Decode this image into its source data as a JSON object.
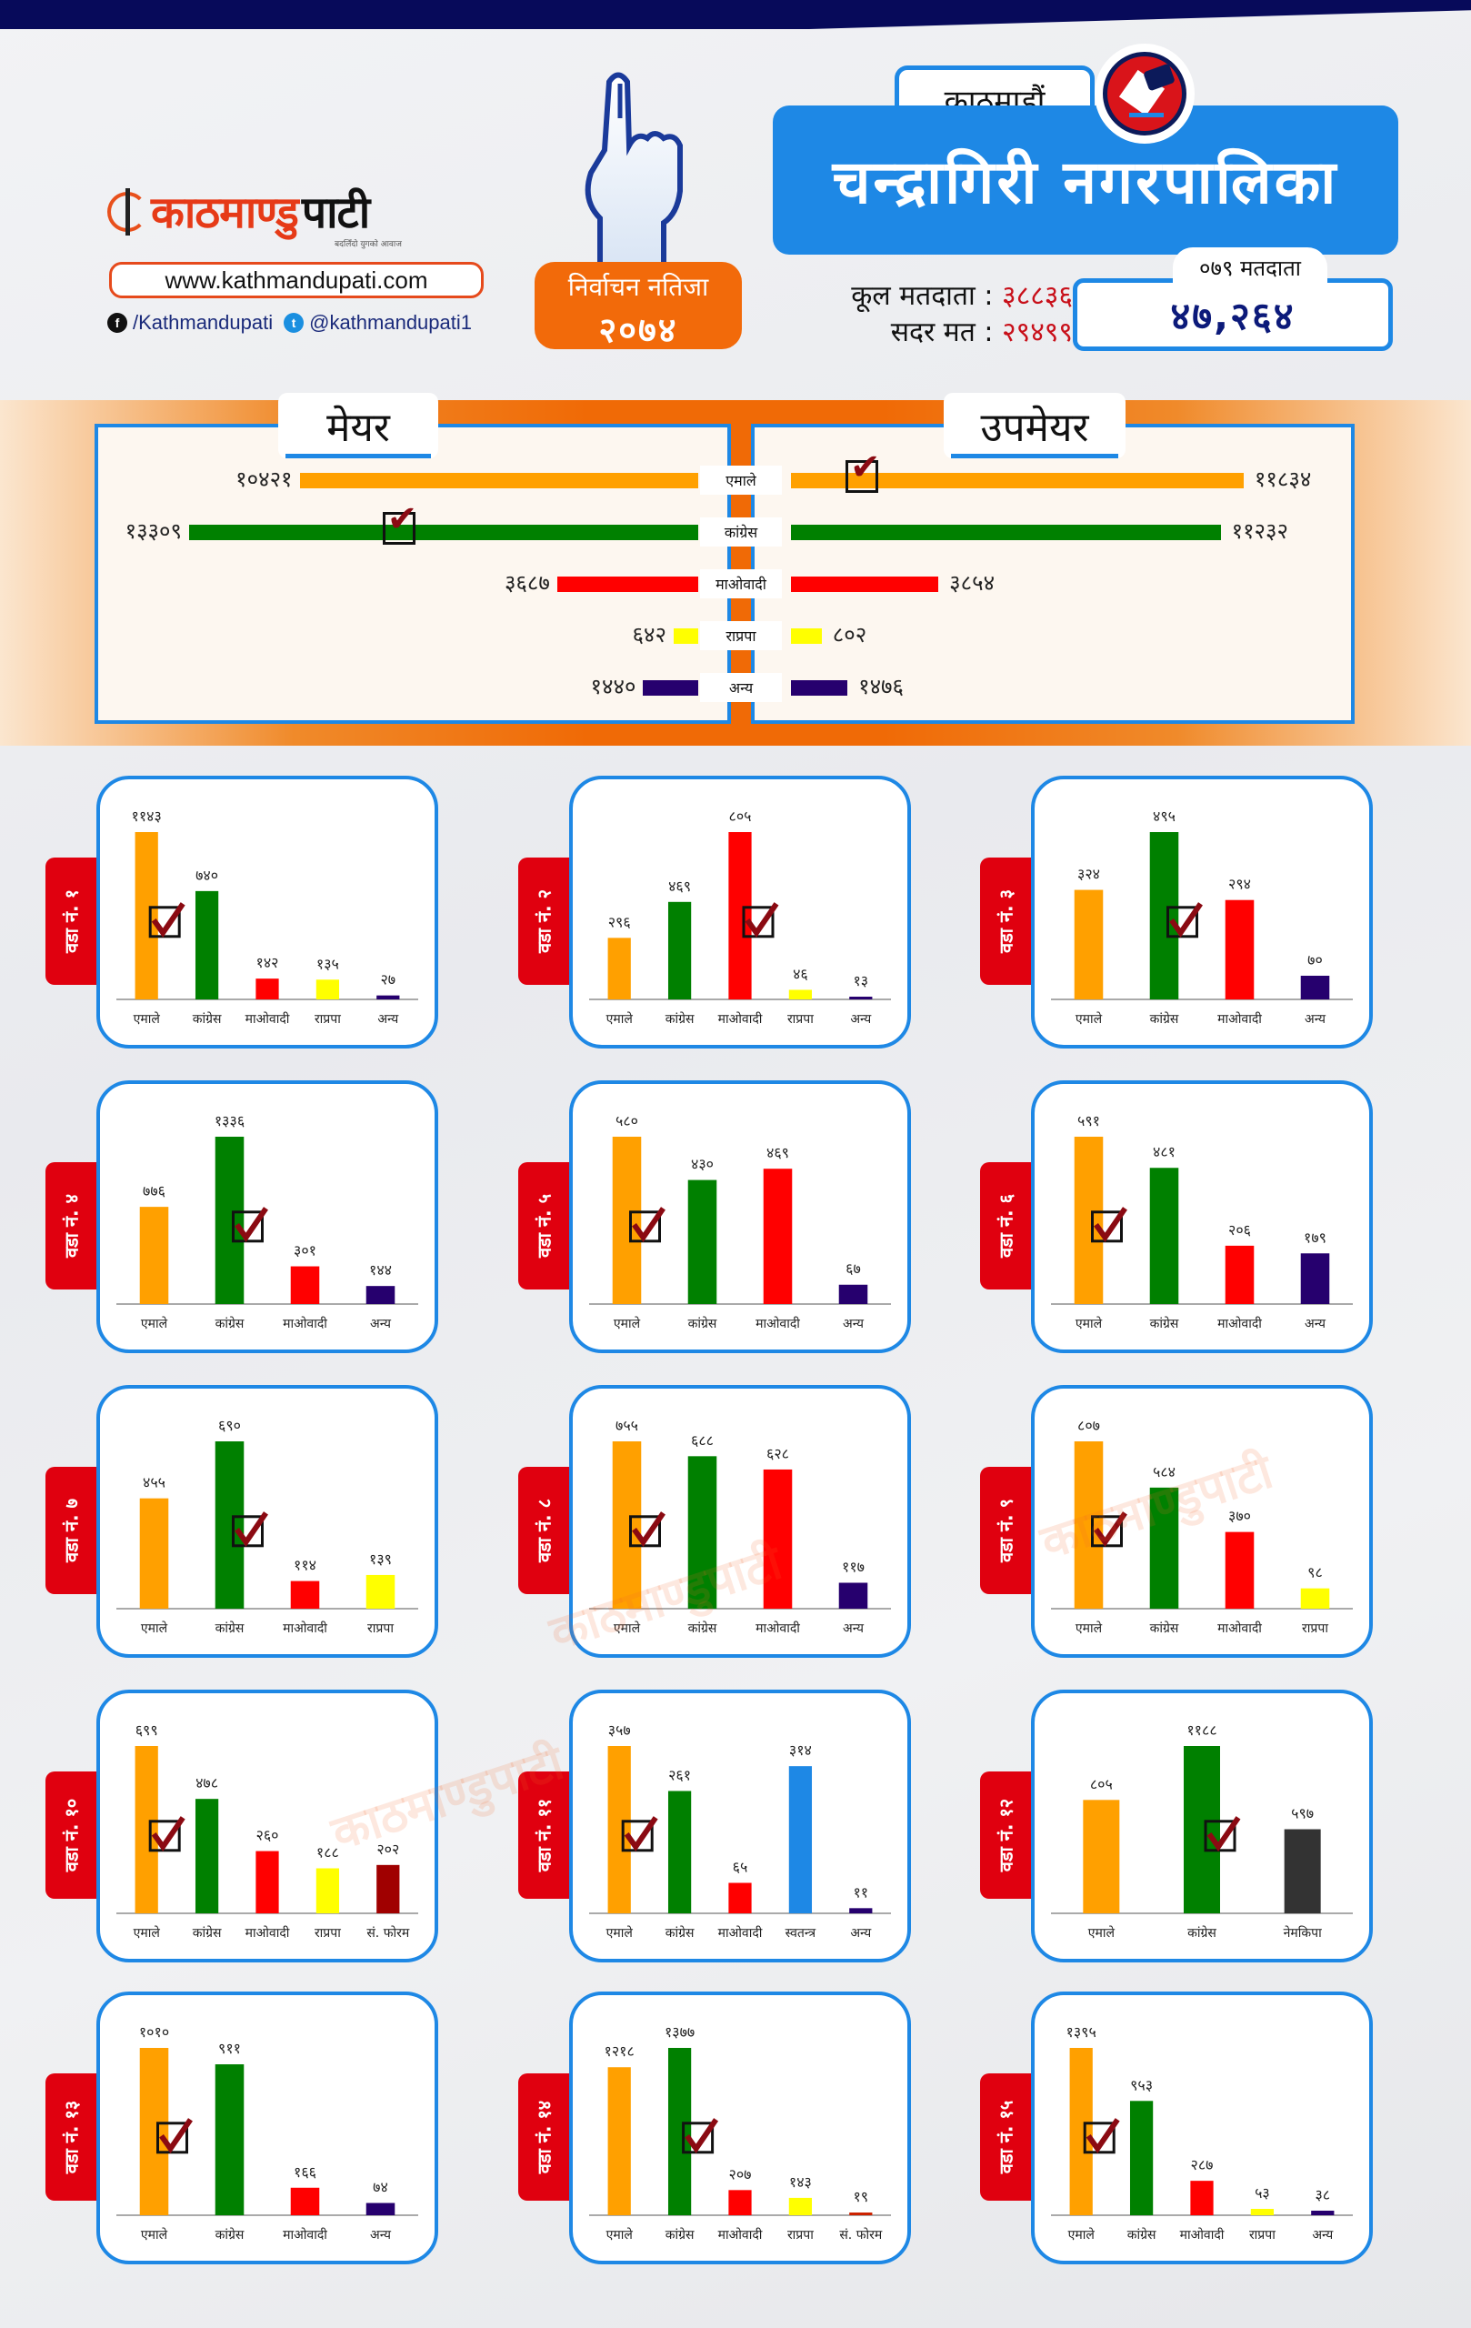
{
  "brand": {
    "logo_part1": "काठमाण्डु",
    "logo_part2": "पाटी",
    "tagline": "बदलिँदो युगको आवाज",
    "website": "www.kathmandupati.com",
    "facebook": "/Kathmandupati",
    "twitter": "@kathmandupati1",
    "colors": {
      "primary": "#e63a17",
      "navy": "#070a5a",
      "blue": "#1e88e5",
      "orange": "#f26a0a"
    }
  },
  "badge": {
    "line1": "निर्वाचन नतिजा",
    "line2": "२०७४"
  },
  "header": {
    "district": "काठमाडौं",
    "municipality": "चन्द्रागिरी नगरपालिका",
    "total_voters_label": "कूल मतदाता",
    "total_voters_value": "३८८३६",
    "valid_votes_label": "सदर मत",
    "valid_votes_value": "२९४९९",
    "voters_079_label": "०७९ मतदाता",
    "voters_079_value": "४७,२६४"
  },
  "chart_data": [
    {
      "type": "bar",
      "orientation": "horizontal",
      "title": "मेयर",
      "categories": [
        "एमाले",
        "कांग्रेस",
        "माओवादी",
        "राप्रपा",
        "अन्य"
      ],
      "values": [
        10421,
        13309,
        3687,
        642,
        1440
      ],
      "value_labels": [
        "१०४२१",
        "१३३०९",
        "३६८७",
        "६४२",
        "१४४०"
      ],
      "colors": [
        "#ffa000",
        "#008000",
        "#ff0000",
        "#ffff00",
        "#26006e"
      ],
      "winner": "कांग्रेस"
    },
    {
      "type": "bar",
      "orientation": "horizontal",
      "title": "उपमेयर",
      "categories": [
        "एमाले",
        "कांग्रेस",
        "माओवादी",
        "राप्रपा",
        "अन्य"
      ],
      "values": [
        11834,
        11232,
        3854,
        802,
        1476
      ],
      "value_labels": [
        "११८३४",
        "११२३२",
        "३८५४",
        "८०२",
        "१४७६"
      ],
      "colors": [
        "#ffa000",
        "#008000",
        "#ff0000",
        "#ffff00",
        "#26006e"
      ],
      "winner": "एमाले"
    },
    {
      "type": "bar",
      "title": "वडा नं. १",
      "categories": [
        "एमाले",
        "कांग्रेस",
        "माओवादी",
        "राप्रपा",
        "अन्य"
      ],
      "values": [
        1143,
        740,
        142,
        135,
        27
      ],
      "value_labels": [
        "११४३",
        "७४०",
        "१४२",
        "१३५",
        "२७"
      ],
      "colors": [
        "#ffa000",
        "#008000",
        "#ff0000",
        "#ffff00",
        "#26006e"
      ],
      "winner": "एमाले"
    },
    {
      "type": "bar",
      "title": "वडा नं. २",
      "categories": [
        "एमाले",
        "कांग्रेस",
        "माओवादी",
        "राप्रपा",
        "अन्य"
      ],
      "values": [
        296,
        469,
        805,
        46,
        13
      ],
      "value_labels": [
        "२९६",
        "४६९",
        "८०५",
        "४६",
        "१३"
      ],
      "colors": [
        "#ffa000",
        "#008000",
        "#ff0000",
        "#ffff00",
        "#26006e"
      ],
      "winner": "माओवादी"
    },
    {
      "type": "bar",
      "title": "वडा नं. ३",
      "categories": [
        "एमाले",
        "कांग्रेस",
        "माओवादी",
        "अन्य"
      ],
      "values": [
        324,
        495,
        294,
        70
      ],
      "value_labels": [
        "३२४",
        "४९५",
        "२९४",
        "७०"
      ],
      "colors": [
        "#ffa000",
        "#008000",
        "#ff0000",
        "#26006e"
      ],
      "winner": "कांग्रेस"
    },
    {
      "type": "bar",
      "title": "वडा नं. ४",
      "categories": [
        "एमाले",
        "कांग्रेस",
        "माओवादी",
        "अन्य"
      ],
      "values": [
        776,
        1336,
        301,
        144
      ],
      "value_labels": [
        "७७६",
        "१३३६",
        "३०१",
        "१४४"
      ],
      "colors": [
        "#ffa000",
        "#008000",
        "#ff0000",
        "#26006e"
      ],
      "winner": "कांग्रेस"
    },
    {
      "type": "bar",
      "title": "वडा नं. ५",
      "categories": [
        "एमाले",
        "कांग्रेस",
        "माओवादी",
        "अन्य"
      ],
      "values": [
        580,
        430,
        469,
        67
      ],
      "value_labels": [
        "५८०",
        "४३०",
        "४६९",
        "६७"
      ],
      "colors": [
        "#ffa000",
        "#008000",
        "#ff0000",
        "#26006e"
      ],
      "winner": "एमाले"
    },
    {
      "type": "bar",
      "title": "वडा नं. ६",
      "categories": [
        "एमाले",
        "कांग्रेस",
        "माओवादी",
        "अन्य"
      ],
      "values": [
        591,
        481,
        206,
        179
      ],
      "value_labels": [
        "५९१",
        "४८१",
        "२०६",
        "१७९"
      ],
      "colors": [
        "#ffa000",
        "#008000",
        "#ff0000",
        "#26006e"
      ],
      "winner": "एमाले"
    },
    {
      "type": "bar",
      "title": "वडा नं. ७",
      "categories": [
        "एमाले",
        "कांग्रेस",
        "माओवादी",
        "राप्रपा"
      ],
      "values": [
        455,
        690,
        114,
        139
      ],
      "value_labels": [
        "४५५",
        "६९०",
        "११४",
        "१३९"
      ],
      "colors": [
        "#ffa000",
        "#008000",
        "#ff0000",
        "#ffff00"
      ],
      "winner": "कांग्रेस"
    },
    {
      "type": "bar",
      "title": "वडा नं. ८",
      "categories": [
        "एमाले",
        "कांग्रेस",
        "माओवादी",
        "अन्य"
      ],
      "values": [
        755,
        688,
        628,
        117
      ],
      "value_labels": [
        "७५५",
        "६८८",
        "६२८",
        "११७"
      ],
      "colors": [
        "#ffa000",
        "#008000",
        "#ff0000",
        "#26006e"
      ],
      "winner": "एमाले"
    },
    {
      "type": "bar",
      "title": "वडा नं. ९",
      "categories": [
        "एमाले",
        "कांग्रेस",
        "माओवादी",
        "राप्रपा"
      ],
      "values": [
        807,
        584,
        370,
        98
      ],
      "value_labels": [
        "८०७",
        "५८४",
        "३७०",
        "९८"
      ],
      "colors": [
        "#ffa000",
        "#008000",
        "#ff0000",
        "#ffff00"
      ],
      "winner": "एमाले"
    },
    {
      "type": "bar",
      "title": "वडा नं. १०",
      "categories": [
        "एमाले",
        "कांग्रेस",
        "माओवादी",
        "राप्रपा",
        "सं. फोरम"
      ],
      "values": [
        699,
        478,
        260,
        188,
        202
      ],
      "value_labels": [
        "६९९",
        "४७८",
        "२६०",
        "१८८",
        "२०२"
      ],
      "colors": [
        "#ffa000",
        "#008000",
        "#ff0000",
        "#ffff00",
        "#a00000"
      ],
      "winner": "एमाले"
    },
    {
      "type": "bar",
      "title": "वडा नं. ११",
      "categories": [
        "एमाले",
        "कांग्रेस",
        "माओवादी",
        "स्वतन्त्र",
        "अन्य"
      ],
      "values": [
        357,
        261,
        65,
        314,
        11
      ],
      "value_labels": [
        "३५७",
        "२६१",
        "६५",
        "३१४",
        "११"
      ],
      "colors": [
        "#ffa000",
        "#008000",
        "#ff0000",
        "#1e88e5",
        "#26006e"
      ],
      "winner": "एमाले"
    },
    {
      "type": "bar",
      "title": "वडा नं. १२",
      "categories": [
        "एमाले",
        "कांग्रेस",
        "नेमकिपा"
      ],
      "values": [
        805,
        1188,
        597
      ],
      "value_labels": [
        "८०५",
        "११८८",
        "५९७"
      ],
      "colors": [
        "#ffa000",
        "#008000",
        "#333333"
      ],
      "winner": "कांग्रेस"
    },
    {
      "type": "bar",
      "title": "वडा नं. १३",
      "categories": [
        "एमाले",
        "कांग्रेस",
        "माओवादी",
        "अन्य"
      ],
      "values": [
        1010,
        911,
        166,
        74
      ],
      "value_labels": [
        "१०१०",
        "९११",
        "१६६",
        "७४"
      ],
      "colors": [
        "#ffa000",
        "#008000",
        "#ff0000",
        "#26006e"
      ],
      "winner": "एमाले"
    },
    {
      "type": "bar",
      "title": "वडा नं. १४",
      "categories": [
        "एमाले",
        "कांग्रेस",
        "माओवादी",
        "राप्रपा",
        "सं. फोरम"
      ],
      "values": [
        1218,
        1377,
        207,
        143,
        19
      ],
      "value_labels": [
        "१२१८",
        "१३७७",
        "२०७",
        "१४३",
        "१९"
      ],
      "colors": [
        "#ffa000",
        "#008000",
        "#ff0000",
        "#ffff00",
        "#cc2200"
      ],
      "winner": "कांग्रेस"
    },
    {
      "type": "bar",
      "title": "वडा नं. १५",
      "categories": [
        "एमाले",
        "कांग्रेस",
        "माओवादी",
        "राप्रपा",
        "अन्य"
      ],
      "values": [
        1395,
        953,
        287,
        53,
        38
      ],
      "value_labels": [
        "१३९५",
        "९५३",
        "२८७",
        "५३",
        "३८"
      ],
      "colors": [
        "#ffa000",
        "#008000",
        "#ff0000",
        "#ffff00",
        "#26006e"
      ],
      "winner": "एमाले"
    }
  ],
  "watermark": "काठमाण्डुपाटी"
}
